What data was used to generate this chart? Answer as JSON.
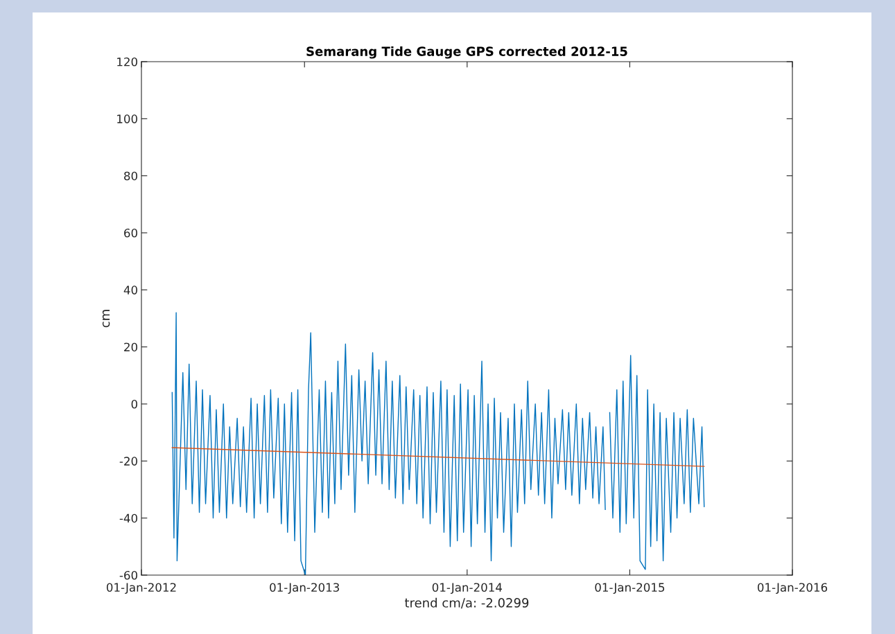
{
  "chart_data": {
    "type": "line",
    "title": "Semarang Tide Gauge GPS corrected 2012-15",
    "xlabel": "trend cm/a: -2.0299",
    "ylabel": "cm",
    "xlim": [
      "2012-01-01",
      "2016-01-01"
    ],
    "xticks": [
      {
        "value": "2012-01-01",
        "label": "01-Jan-2012"
      },
      {
        "value": "2013-01-01",
        "label": "01-Jan-2013"
      },
      {
        "value": "2014-01-01",
        "label": "01-Jan-2014"
      },
      {
        "value": "2015-01-01",
        "label": "01-Jan-2015"
      },
      {
        "value": "2016-01-01",
        "label": "01-Jan-2016"
      }
    ],
    "ylim": [
      -60,
      120
    ],
    "yticks": [
      -60,
      -40,
      -20,
      0,
      20,
      40,
      60,
      80,
      100,
      120
    ],
    "grid": false,
    "series": [
      {
        "color": "#0072bd",
        "x": [
          "2012-03-10",
          "2012-03-14",
          "2012-03-19",
          "2012-03-21",
          "2012-04-03",
          "2012-04-10",
          "2012-04-17",
          "2012-04-24",
          "2012-05-03",
          "2012-05-10",
          "2012-05-17",
          "2012-05-24",
          "2012-06-03",
          "2012-06-10",
          "2012-06-17",
          "2012-06-24",
          "2012-07-03",
          "2012-07-10",
          "2012-07-17",
          "2012-07-24",
          "2012-08-03",
          "2012-08-10",
          "2012-08-17",
          "2012-08-24",
          "2012-09-03",
          "2012-09-10",
          "2012-09-17",
          "2012-09-24",
          "2012-10-03",
          "2012-10-10",
          "2012-10-17",
          "2012-10-24",
          "2012-11-03",
          "2012-11-10",
          "2012-11-17",
          "2012-11-24",
          "2012-12-03",
          "2012-12-10",
          "2012-12-17",
          "2012-12-24",
          "2013-01-03",
          "2013-01-10",
          "2013-01-15",
          "2013-01-24",
          "2013-02-03",
          "2013-02-10",
          "2013-02-17",
          "2013-02-24",
          "2013-03-03",
          "2013-03-10",
          "2013-03-17",
          "2013-03-24",
          "2013-04-03",
          "2013-04-10",
          "2013-04-17",
          "2013-04-24",
          "2013-05-03",
          "2013-05-10",
          "2013-05-17",
          "2013-05-24",
          "2013-06-03",
          "2013-06-10",
          "2013-06-17",
          "2013-06-24",
          "2013-07-03",
          "2013-07-10",
          "2013-07-17",
          "2013-07-24",
          "2013-08-03",
          "2013-08-10",
          "2013-08-17",
          "2013-08-24",
          "2013-09-03",
          "2013-09-10",
          "2013-09-17",
          "2013-09-24",
          "2013-10-03",
          "2013-10-10",
          "2013-10-17",
          "2013-10-24",
          "2013-11-03",
          "2013-11-10",
          "2013-11-17",
          "2013-11-24",
          "2013-12-03",
          "2013-12-10",
          "2013-12-17",
          "2013-12-24",
          "2014-01-03",
          "2014-01-10",
          "2014-01-17",
          "2014-01-24",
          "2014-02-03",
          "2014-02-10",
          "2014-02-17",
          "2014-02-24",
          "2014-03-03",
          "2014-03-10",
          "2014-03-17",
          "2014-03-24",
          "2014-04-03",
          "2014-04-10",
          "2014-04-17",
          "2014-04-24",
          "2014-05-03",
          "2014-05-10",
          "2014-05-17",
          "2014-05-24",
          "2014-06-03",
          "2014-06-10",
          "2014-06-17",
          "2014-06-24",
          "2014-07-03",
          "2014-07-10",
          "2014-07-17",
          "2014-07-24",
          "2014-08-03",
          "2014-08-10",
          "2014-08-17",
          "2014-08-24",
          "2014-09-03",
          "2014-09-10",
          "2014-09-17",
          "2014-09-24",
          "2014-10-03",
          "2014-10-10",
          "2014-10-17",
          "2014-10-24",
          "2014-11-02",
          "2014-11-07",
          "2014-11-12",
          "2014-11-17",
          "2014-11-24",
          "2014-12-03",
          "2014-12-10",
          "2014-12-17",
          "2014-12-24",
          "2015-01-03",
          "2015-01-10",
          "2015-01-17",
          "2015-01-24",
          "2015-02-05",
          "2015-02-10",
          "2015-02-17",
          "2015-02-24",
          "2015-03-03",
          "2015-03-10",
          "2015-03-17",
          "2015-03-24",
          "2015-04-03",
          "2015-04-10",
          "2015-04-17",
          "2015-04-24",
          "2015-05-03",
          "2015-05-10",
          "2015-05-17",
          "2015-05-24",
          "2015-06-05",
          "2015-06-12",
          "2015-06-17"
        ],
        "values": [
          4,
          -47,
          32,
          -55,
          11,
          -30,
          14,
          -35,
          8,
          -38,
          5,
          -35,
          3,
          -40,
          -2,
          -38,
          0,
          -40,
          -8,
          -35,
          -5,
          -36,
          -8,
          -38,
          2,
          -40,
          0,
          -35,
          3,
          -38,
          5,
          -33,
          2,
          -42,
          0,
          -45,
          4,
          -48,
          5,
          -55,
          -60,
          5,
          25,
          -45,
          5,
          -38,
          8,
          -40,
          4,
          -35,
          15,
          -30,
          21,
          -25,
          10,
          -38,
          12,
          -20,
          8,
          -28,
          18,
          -25,
          12,
          -28,
          15,
          -30,
          8,
          -33,
          10,
          -35,
          6,
          -30,
          5,
          -35,
          3,
          -40,
          6,
          -42,
          4,
          -38,
          8,
          -45,
          5,
          -50,
          3,
          -48,
          7,
          -45,
          5,
          -50,
          3,
          -42,
          15,
          -45,
          0,
          -55,
          2,
          -40,
          -3,
          -45,
          -5,
          -50,
          0,
          -38,
          -2,
          -35,
          8,
          -30,
          0,
          -32,
          -3,
          -35,
          5,
          -40,
          -5,
          -28,
          -2,
          -30,
          -3,
          -32,
          0,
          -35,
          -5,
          -30,
          -3,
          -33,
          -8,
          -35,
          -8,
          -37,
          null,
          -3,
          -40,
          5,
          -45,
          8,
          -42,
          17,
          -40,
          10,
          -55,
          -58,
          5,
          -50,
          0,
          -48,
          -3,
          -55,
          -5,
          -45,
          -3,
          -40,
          -5,
          -35,
          -2,
          -38,
          -5,
          -35,
          -8,
          -36
        ]
      },
      {
        "type": "line",
        "color": "#d95319",
        "x": [
          "2012-03-10",
          "2015-06-17"
        ],
        "values": [
          -15.3,
          -21.9
        ]
      }
    ]
  }
}
